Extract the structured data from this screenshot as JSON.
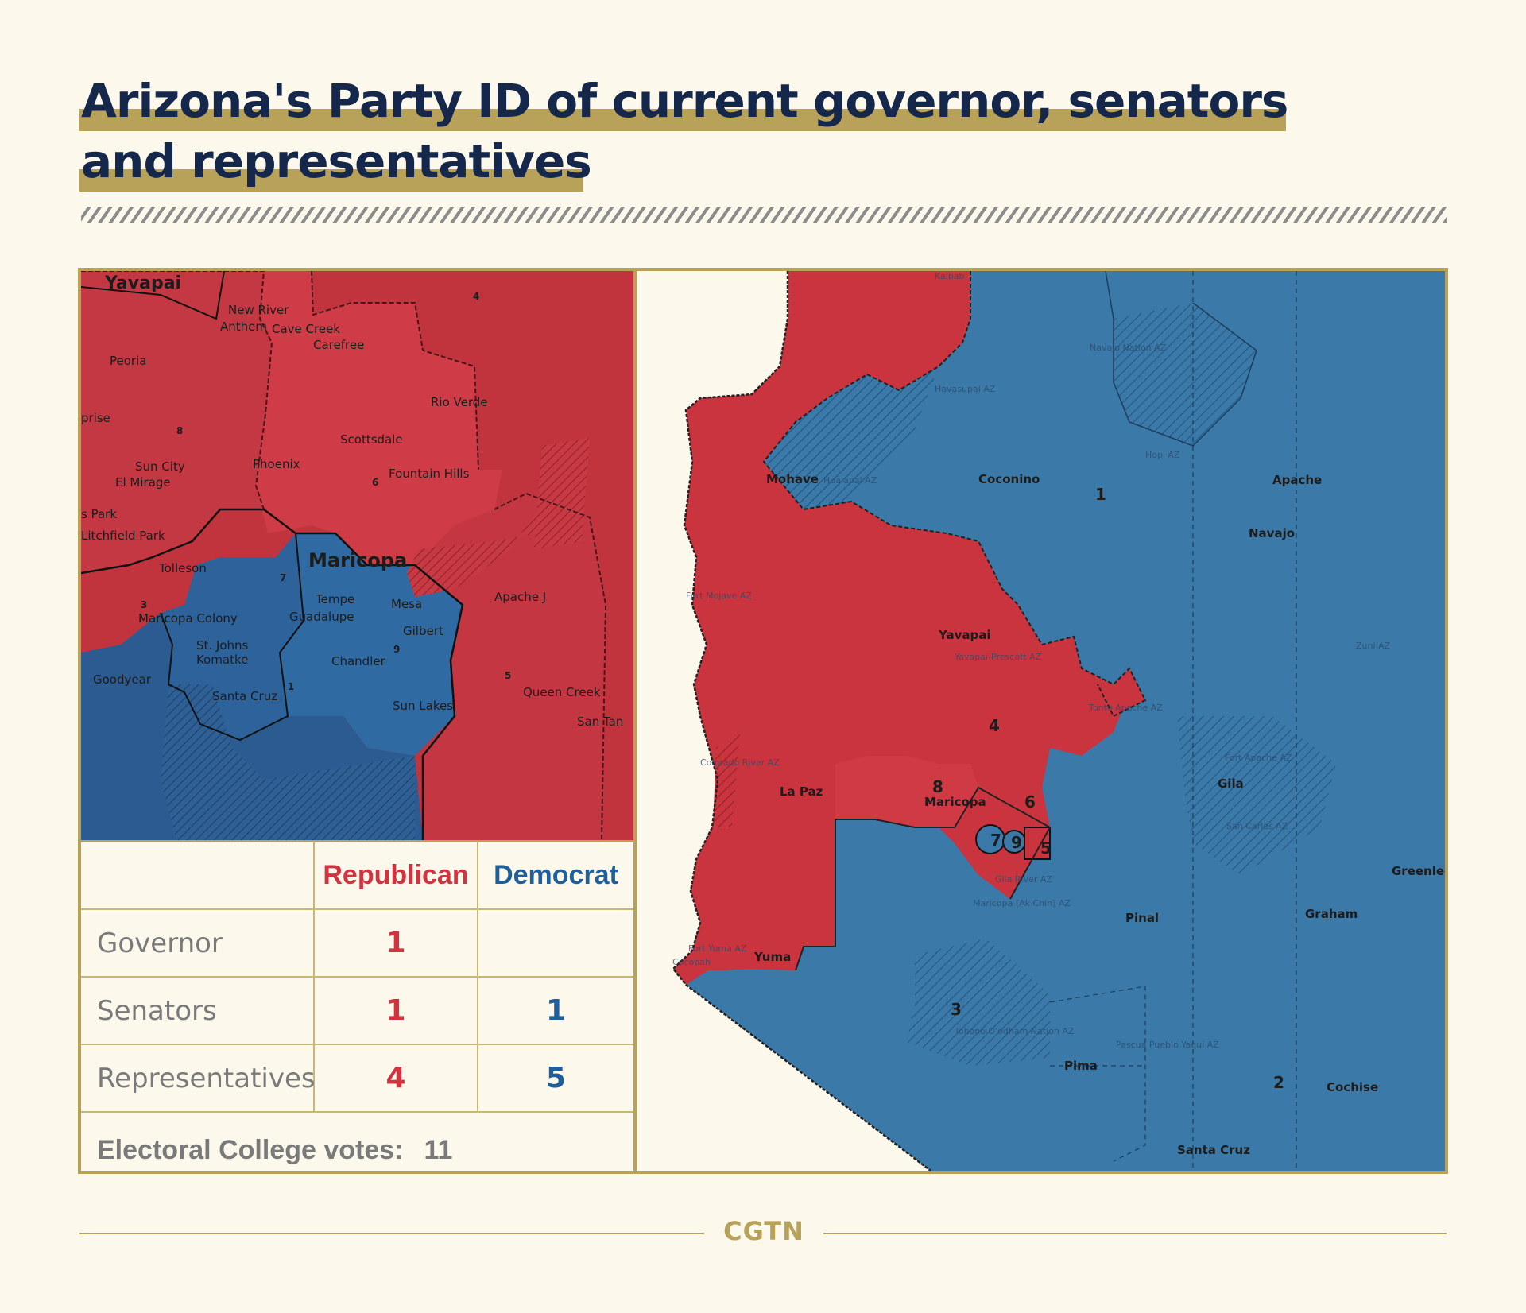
{
  "title": {
    "line1": "Arizona's Party ID of current governor, senators",
    "line2": "and representatives"
  },
  "colors": {
    "republican": "#c9343e",
    "democrat": "#3a79a8",
    "accent_gold": "#b8a25a",
    "title_navy": "#15274a",
    "background": "#fcf8ec"
  },
  "table": {
    "headers": {
      "republican": "Republican",
      "democrat": "Democrat"
    },
    "rows": [
      {
        "label": "Governor",
        "republican": "1",
        "democrat": ""
      },
      {
        "label": "Senators",
        "republican": "1",
        "democrat": "1"
      },
      {
        "label": "Representatives",
        "republican": "4",
        "democrat": "5"
      }
    ],
    "electoral_label": "Electoral College votes:",
    "electoral_value": "11"
  },
  "inset_map": {
    "county_labels": {
      "yavapai": "Yavapai",
      "maricopa": "Maricopa"
    },
    "places": [
      "New River",
      "Anthem",
      "Cave Creek",
      "Carefree",
      "Peoria",
      "Rio Verde",
      "prise",
      "Scottsdale",
      "Sun City",
      "El Mirage",
      "Phoenix",
      "Fountain Hills",
      "s Park",
      "Litchfield Park",
      "Tolleson",
      "Maricopa Colony",
      "Tempe",
      "Guadalupe",
      "Mesa",
      "Apache J",
      "Gilbert",
      "St. Johns",
      "Komatke",
      "Chandler",
      "Goodyear",
      "Santa Cruz",
      "Sun Lakes",
      "Queen Creek",
      "San Tan"
    ],
    "districts": [
      "4",
      "8",
      "6",
      "7",
      "3",
      "9",
      "1",
      "5"
    ]
  },
  "main_map": {
    "counties": [
      "Mohave",
      "Coconino",
      "Apache",
      "Navajo",
      "Yavapai",
      "La Paz",
      "Maricopa",
      "Gila",
      "Pinal",
      "Greenlee",
      "Graham",
      "Yuma",
      "Pima",
      "Cochise",
      "Santa Cruz"
    ],
    "districts": [
      "1",
      "2",
      "3",
      "4",
      "5",
      "6",
      "7",
      "8",
      "9"
    ],
    "faint_labels": [
      "Navajo Nation AZ",
      "Hopi AZ",
      "Havasupai AZ",
      "Hualapai AZ",
      "Fort Mojave AZ",
      "Yavapai-Prescott AZ",
      "Tonto Apache AZ",
      "Zuni AZ",
      "Fort Apache AZ",
      "San Carlos AZ",
      "Colorado River AZ",
      "Fort Yuma AZ",
      "Cocopah",
      "Gila River AZ",
      "Maricopa (Ak Chin) AZ",
      "Tohono O'odham Nation AZ",
      "Pascua Pueblo Yaqui AZ",
      "Kaibab"
    ]
  },
  "footer": {
    "logo": "CGTN"
  }
}
